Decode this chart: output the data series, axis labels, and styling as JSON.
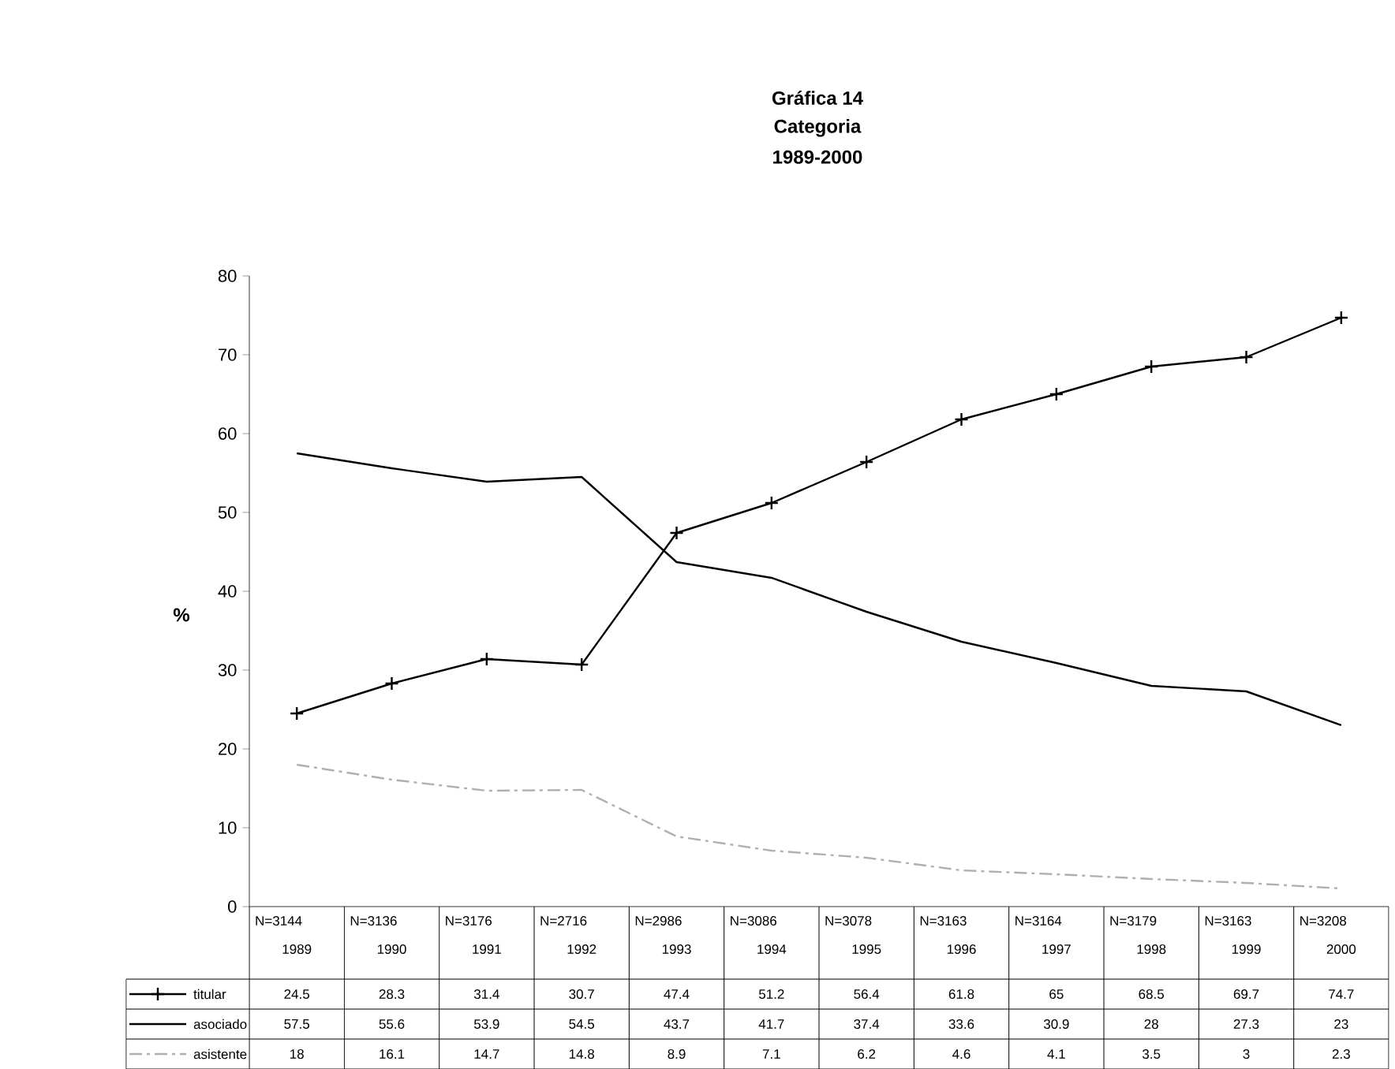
{
  "chart_data": {
    "type": "line",
    "title": "Gráfica 14",
    "subtitle": "Categoria 1989-2000",
    "ylabel": "%",
    "categories": [
      "1989",
      "1990",
      "1991",
      "1992",
      "1993",
      "1994",
      "1995",
      "1996",
      "1997",
      "1998",
      "1999",
      "2000"
    ],
    "annotations": [
      "N=3144",
      "N=3136",
      "N=3176",
      "N=2716",
      "N=2986",
      "N=3086",
      "N=3078",
      "N=3163",
      "N=3164",
      "N=3179",
      "N=3163",
      "N=3208"
    ],
    "ylim": [
      0,
      80
    ],
    "yticks": [
      0,
      10,
      20,
      30,
      40,
      50,
      60,
      70,
      80
    ],
    "grid": false,
    "legend": "bottom left",
    "data_labels": true,
    "series": [
      {
        "name": "titular",
        "color": "#000000",
        "marker": "cross",
        "line_style": "solid",
        "values": [
          24.5,
          28.3,
          31.4,
          30.7,
          47.4,
          51.2,
          56.4,
          61.8,
          65,
          68.5,
          69.7,
          74.7
        ]
      },
      {
        "name": "asociado",
        "color": "#000000",
        "marker": "none",
        "line_style": "solid",
        "values": [
          57.5,
          55.6,
          53.9,
          54.5,
          43.7,
          41.7,
          37.4,
          33.6,
          30.9,
          28,
          27.3,
          23
        ]
      },
      {
        "name": "asistente",
        "color": "#b0b0b0",
        "marker": "none",
        "line_style": "dashed",
        "values": [
          18,
          16.1,
          14.7,
          14.8,
          8.9,
          7.1,
          6.2,
          4.6,
          4.1,
          3.5,
          3,
          2.3
        ]
      }
    ]
  }
}
